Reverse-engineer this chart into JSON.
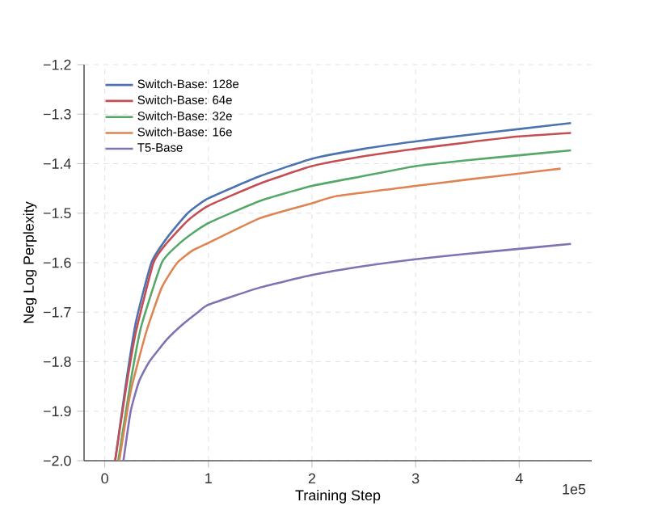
{
  "chart_data": {
    "type": "line",
    "xlabel": "Training Step",
    "ylabel": "Neg Log Perplexity",
    "annotations": [
      "1e5"
    ],
    "xlim": [
      -0.2,
      4.7
    ],
    "ylim": [
      -2.0,
      -1.2
    ],
    "xticks": [
      0,
      1,
      2,
      3,
      4
    ],
    "yticks": [
      {
        "value": -2.0,
        "label": "−2.0"
      },
      {
        "value": -1.9,
        "label": "−1.9"
      },
      {
        "value": -1.8,
        "label": "−1.8"
      },
      {
        "value": -1.7,
        "label": "−1.7"
      },
      {
        "value": -1.6,
        "label": "−1.6"
      },
      {
        "value": -1.5,
        "label": "−1.5"
      },
      {
        "value": -1.4,
        "label": "−1.4"
      },
      {
        "value": -1.3,
        "label": "−1.3"
      },
      {
        "value": -1.2,
        "label": "−1.2"
      }
    ],
    "grid": true,
    "legend": "top left",
    "line_style": "solid",
    "marker": "none",
    "series": [
      {
        "name": "Switch-Base: 128e",
        "color": "#4c72b0",
        "x": [
          0.1,
          0.2,
          0.3,
          0.45,
          0.6,
          0.8,
          1,
          1.5,
          2,
          2.5,
          3,
          3.5,
          4,
          4.5
        ],
        "values": [
          -2.0,
          -1.85,
          -1.72,
          -1.6,
          -1.55,
          -1.5,
          -1.47,
          -1.425,
          -1.39,
          -1.37,
          -1.355,
          -1.342,
          -1.33,
          -1.318
        ]
      },
      {
        "name": "Switch-Base: 64e",
        "color": "#c44e52",
        "x": [
          0.1,
          0.2,
          0.3,
          0.47,
          0.6,
          0.8,
          1,
          1.5,
          2,
          2.5,
          3,
          3.5,
          4,
          4.5
        ],
        "values": [
          -2.0,
          -1.86,
          -1.74,
          -1.6,
          -1.56,
          -1.515,
          -1.485,
          -1.44,
          -1.405,
          -1.385,
          -1.37,
          -1.357,
          -1.345,
          -1.338
        ]
      },
      {
        "name": "Switch-Base: 32e",
        "color": "#55a868",
        "x": [
          0.13,
          0.25,
          0.35,
          0.55,
          0.7,
          0.85,
          1,
          1.5,
          2,
          2.5,
          3,
          3.5,
          4,
          4.5
        ],
        "values": [
          -2.0,
          -1.84,
          -1.73,
          -1.6,
          -1.565,
          -1.54,
          -1.52,
          -1.475,
          -1.445,
          -1.425,
          -1.405,
          -1.393,
          -1.383,
          -1.373
        ]
      },
      {
        "name": "Switch-Base: 16e",
        "color": "#dd8452",
        "x": [
          0.14,
          0.25,
          0.4,
          0.55,
          0.7,
          0.85,
          1,
          1.5,
          2,
          2.25,
          3,
          3.5,
          4,
          4.4
        ],
        "values": [
          -2.0,
          -1.86,
          -1.74,
          -1.65,
          -1.6,
          -1.575,
          -1.56,
          -1.51,
          -1.48,
          -1.465,
          -1.445,
          -1.432,
          -1.42,
          -1.41
        ]
      },
      {
        "name": "T5-Base",
        "color": "#8172b3",
        "x": [
          0.18,
          0.25,
          0.33,
          0.43,
          0.6,
          0.75,
          0.9,
          1,
          1.5,
          2,
          2.5,
          3,
          3.5,
          4,
          4.5
        ],
        "values": [
          -2.0,
          -1.9,
          -1.84,
          -1.8,
          -1.755,
          -1.725,
          -1.7,
          -1.685,
          -1.65,
          -1.625,
          -1.607,
          -1.593,
          -1.582,
          -1.572,
          -1.562
        ]
      }
    ]
  }
}
